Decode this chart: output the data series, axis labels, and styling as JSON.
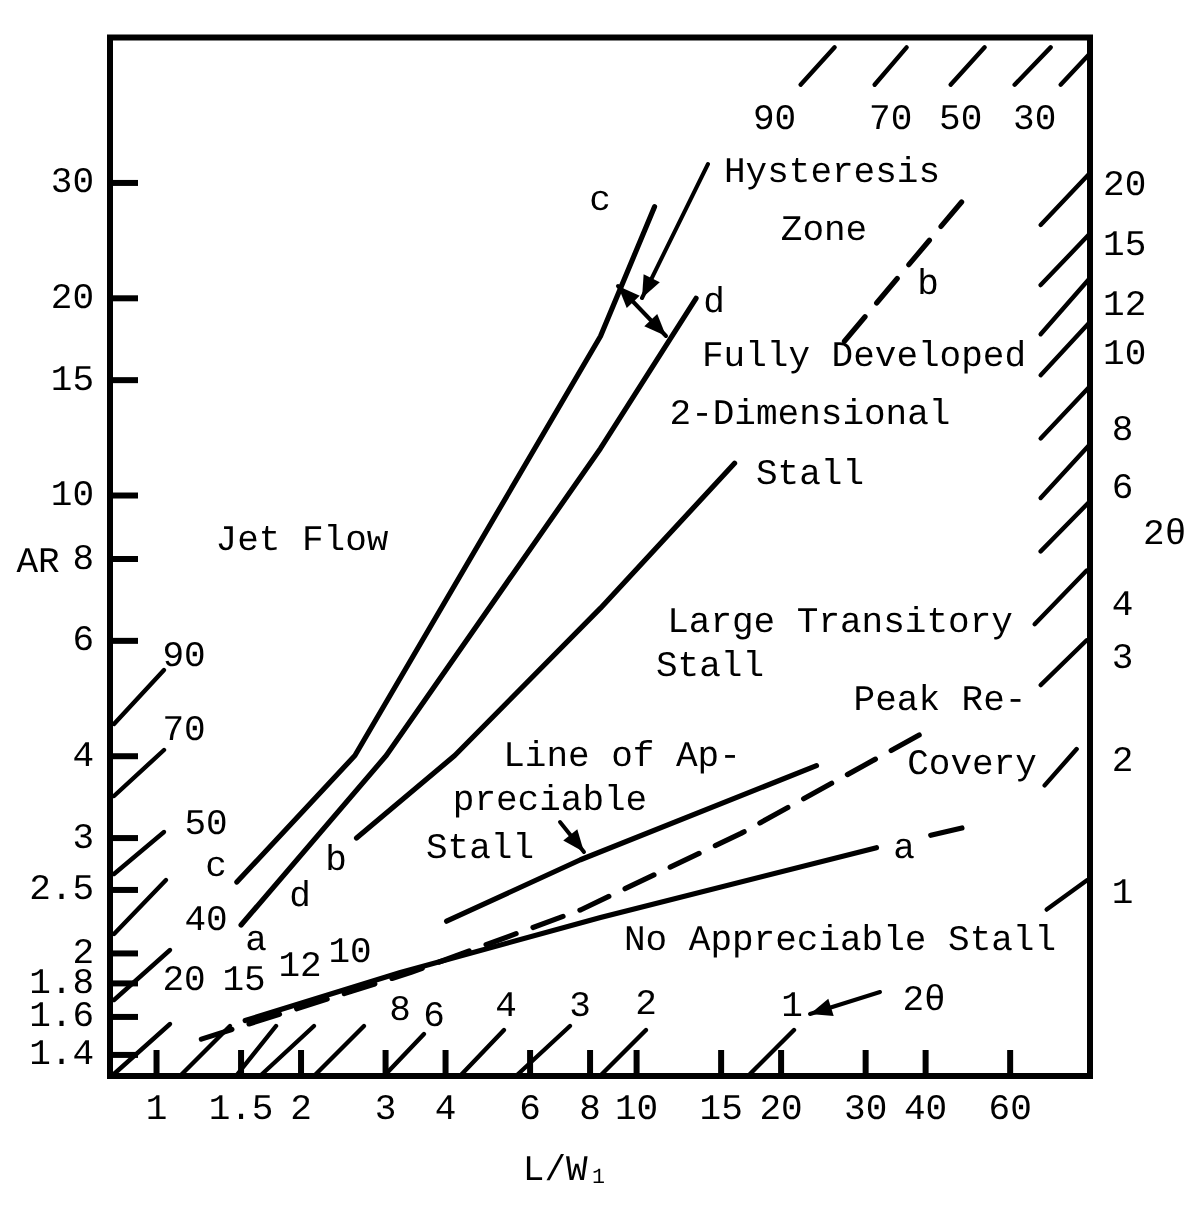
{
  "chart_data": {
    "type": "line",
    "xlabel": "L/W₁",
    "ylabel": "AR",
    "log": "xy",
    "xlim": [
      0.8,
      88
    ],
    "ylim": [
      1.3,
      50
    ],
    "xticks": [
      1,
      1.5,
      2,
      3,
      4,
      6,
      8,
      10,
      15,
      20,
      30,
      40,
      60
    ],
    "yticks": [
      1.4,
      1.6,
      1.8,
      2,
      2.5,
      3,
      4,
      6,
      8,
      10,
      15,
      20,
      30
    ],
    "grid": false,
    "legend": false,
    "marker": "none",
    "annotations": [
      "Jet Flow",
      "Hysteresis",
      "Zone",
      "Fully Developed",
      "2-Dimensional",
      "Stall",
      "Large Transitory",
      "Stall",
      "Peak Re-",
      "Covery",
      "Line of Ap-",
      "preciable",
      "Stall",
      "No Appreciable Stall",
      "c",
      "d",
      "b",
      "c",
      "d",
      "b",
      "a",
      "a",
      "90",
      "70",
      "50",
      "40",
      "20",
      "15",
      "12",
      "10",
      "8",
      "6",
      "4",
      "3",
      "2",
      "1",
      "2θ",
      "90",
      "70",
      "50",
      "30",
      "20",
      "15",
      "12",
      "10",
      "8",
      "6",
      "2θ",
      "4",
      "3",
      "2",
      "1"
    ],
    "series": [
      {
        "color": "#000000",
        "line_style": "solid",
        "x": [
          1.47,
          2.59,
          8.41,
          10.9
        ],
        "values": [
          2.57,
          4.01,
          17.5,
          27.6
        ]
      },
      {
        "color": "#000000",
        "line_style": "solid",
        "x": [
          1.5,
          3.01,
          8.41,
          13.3
        ],
        "values": [
          2.21,
          4.01,
          11.8,
          20.0
        ]
      },
      {
        "color": "#000000",
        "line_style": "solid",
        "x": [
          2.61,
          4.18,
          8.41,
          16.0
        ],
        "values": [
          3.0,
          4.01,
          6.73,
          11.2
        ]
      },
      {
        "color": "#000000",
        "line_style": "dashed",
        "x": [
          27.1,
          48.2
        ],
        "values": [
          17.2,
          28.4
        ]
      },
      {
        "color": "#000000",
        "line_style": "solid",
        "x": [
          4.02,
          7.64,
          23.7
        ],
        "values": [
          2.24,
          2.78,
          3.87
        ]
      },
      {
        "color": "#000000",
        "line_style": "dashed",
        "x": [
          1.24,
          3.38,
          7.64,
          16.5,
          39.0
        ],
        "values": [
          1.48,
          1.87,
          2.33,
          3.05,
          4.32
        ]
      },
      {
        "color": "#000000",
        "line_style": "solid",
        "x": [
          1.53,
          3.22,
          8.41,
          31.6
        ],
        "values": [
          1.58,
          1.87,
          2.27,
          2.9
        ]
      },
      {
        "color": "#000000",
        "line_style": "dashed",
        "x": [
          41.0,
          47.8
        ],
        "values": [
          3.03,
          3.11
        ]
      }
    ]
  }
}
